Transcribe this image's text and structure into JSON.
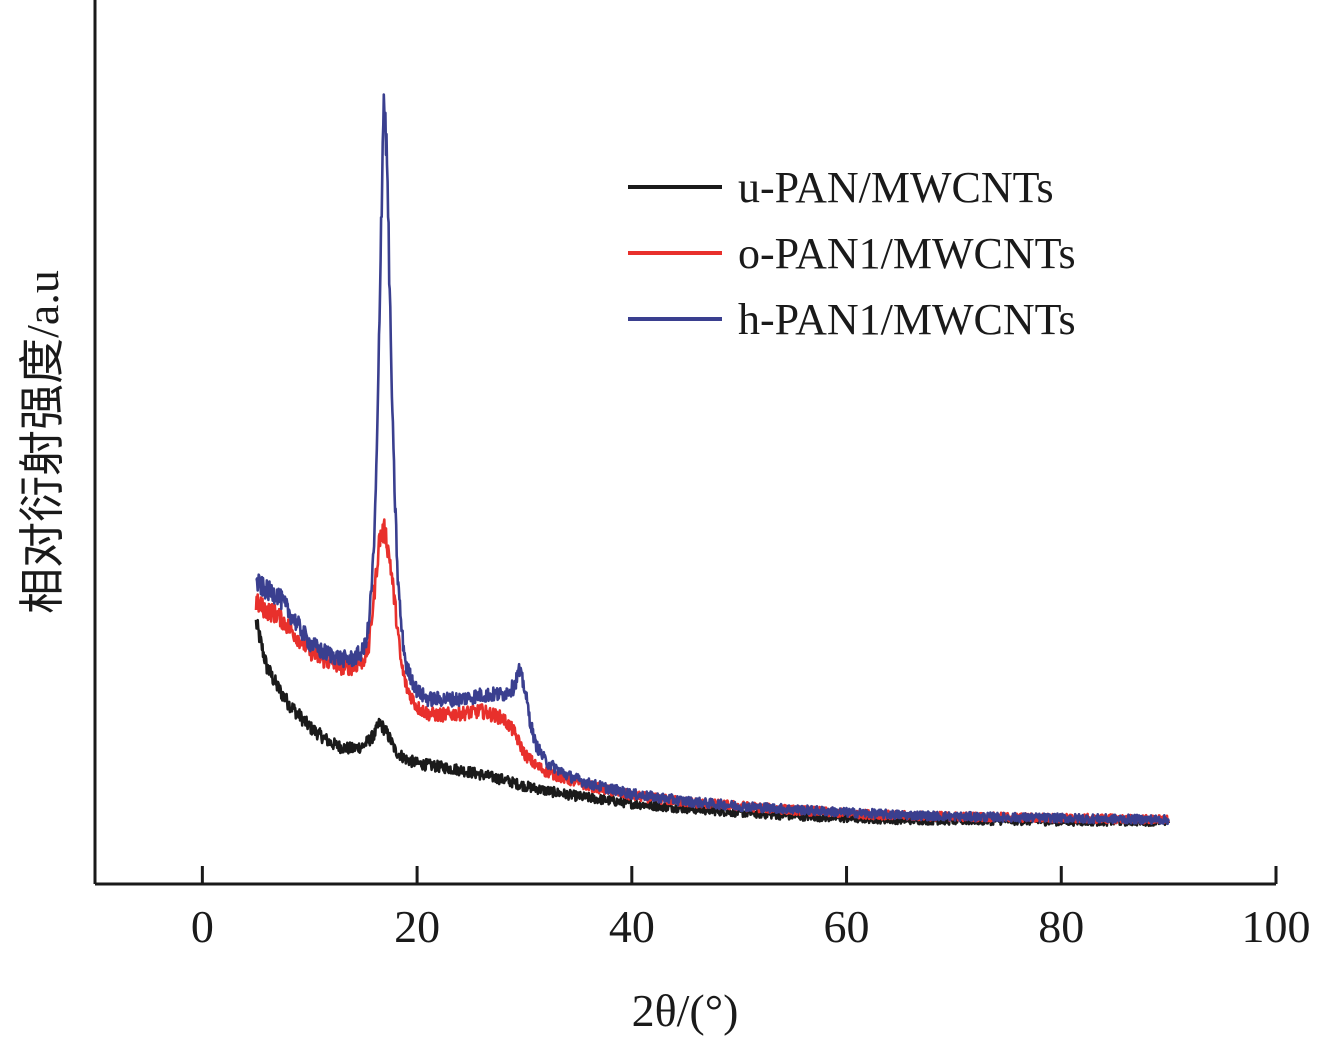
{
  "chart_data": {
    "type": "line",
    "xlabel": "2θ/(°)",
    "ylabel": "相对衍射强度/a.u",
    "xlim": [
      -10,
      100
    ],
    "ylim": [
      0,
      100
    ],
    "x_ticks": [
      "0",
      "20",
      "40",
      "60",
      "80",
      "100"
    ],
    "y_ticks": [],
    "grid": false,
    "legend_position": "top-right",
    "series": [
      {
        "name": "u-PAN/MWCNTs",
        "color": "#1a1a1a",
        "x": [
          5,
          6,
          7,
          8,
          9,
          10,
          11,
          12,
          13,
          14,
          15,
          16,
          16.5,
          17,
          17.5,
          18,
          19,
          20,
          22,
          24,
          26,
          28,
          30,
          32,
          35,
          40,
          45,
          50,
          55,
          60,
          65,
          70,
          75,
          80,
          85,
          90
        ],
        "y": [
          32.5,
          27,
          24.5,
          22.5,
          21,
          19.5,
          18.5,
          17.5,
          17,
          16.8,
          17.2,
          18.5,
          20,
          19.2,
          18,
          16.5,
          15.5,
          15,
          14.6,
          14.2,
          13.6,
          13,
          12.2,
          11.6,
          10.9,
          10,
          9.4,
          8.9,
          8.5,
          8.2,
          8,
          7.9,
          7.9,
          7.8,
          7.8,
          7.8
        ]
      },
      {
        "name": "o-PAN1/MWCNTs",
        "color": "#e8302c",
        "x": [
          5,
          6,
          7,
          8,
          9,
          10,
          11,
          12,
          13,
          14,
          15,
          15.5,
          16,
          16.5,
          17,
          17.5,
          18,
          18.5,
          19,
          20,
          21,
          22,
          24,
          26,
          28,
          29,
          30,
          31,
          32,
          34,
          36,
          40,
          45,
          50,
          55,
          60,
          65,
          70,
          75,
          80,
          85,
          90
        ],
        "y": [
          35,
          34,
          33.5,
          32,
          30.5,
          29,
          28,
          27.5,
          27,
          27,
          27.8,
          29.5,
          36,
          43,
          44,
          40,
          34,
          27.5,
          24.5,
          22,
          21.2,
          21,
          21.2,
          21.5,
          20.6,
          19,
          16.2,
          14.8,
          14,
          13,
          12.2,
          11,
          10.2,
          9.7,
          9.2,
          8.8,
          8.5,
          8.4,
          8.3,
          8.2,
          8.1,
          8
        ]
      },
      {
        "name": "h-PAN1/MWCNTs",
        "color": "#3a3f8f",
        "x": [
          5,
          6,
          7,
          8,
          9,
          10,
          11,
          12,
          13,
          14,
          15,
          15.5,
          16,
          16.3,
          16.6,
          16.9,
          17.2,
          17.5,
          17.8,
          18.2,
          18.6,
          19,
          20,
          21,
          22,
          24,
          26,
          28,
          29,
          29.5,
          30,
          30.5,
          31,
          32,
          34,
          36,
          40,
          45,
          50,
          55,
          60,
          65,
          70,
          75,
          80,
          85,
          90
        ],
        "y": [
          37.5,
          36.5,
          36,
          34,
          32,
          30,
          29,
          28.5,
          28,
          28,
          29,
          32,
          42,
          56,
          79,
          98,
          90,
          70,
          53,
          38,
          31,
          27,
          24,
          23,
          23,
          23,
          23.5,
          23.6,
          24.5,
          26.5,
          24.5,
          20.5,
          17.5,
          15.2,
          13.5,
          12.5,
          11.2,
          10.3,
          9.7,
          9.3,
          8.9,
          8.6,
          8.4,
          8.3,
          8.2,
          8.1,
          8
        ]
      }
    ]
  }
}
